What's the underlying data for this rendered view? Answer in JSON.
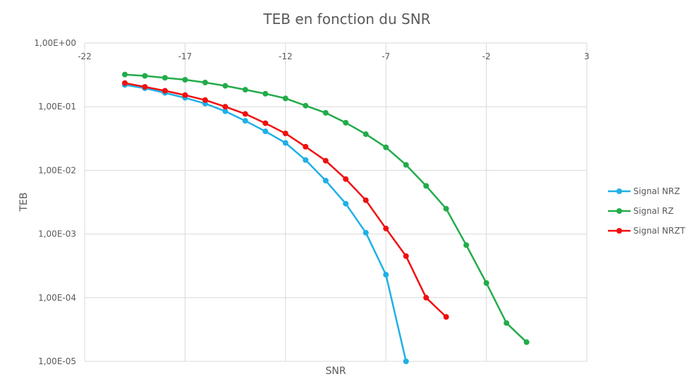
{
  "chart_data": {
    "type": "line",
    "title": "TEB en fonction du SNR",
    "xlabel": "SNR",
    "ylabel": "TEB",
    "xlim": [
      -22,
      3
    ],
    "ylim": [
      1e-05,
      1
    ],
    "y_scale": "log",
    "x_ticks": [
      -22,
      -17,
      -12,
      -7,
      -2,
      3
    ],
    "x_tick_labels": [
      "-22",
      "-17",
      "-12",
      "-7",
      "-2",
      "3"
    ],
    "y_ticks": [
      1,
      0.1,
      0.01,
      0.001,
      0.0001,
      1e-05
    ],
    "y_tick_labels": [
      "1,00E+00",
      "1,00E-01",
      "1,00E-02",
      "1,00E-03",
      "1,00E-04",
      "1,00E-05"
    ],
    "grid": true,
    "legend_position": "right",
    "series": [
      {
        "name": "Signal NRZ",
        "color": "#1fb0e6",
        "x": [
          -20,
          -19,
          -18,
          -17,
          -16,
          -15,
          -14,
          -13,
          -12,
          -11,
          -10,
          -9,
          -8,
          -7,
          -6
        ],
        "y": [
          0.22,
          0.195,
          0.165,
          0.138,
          0.112,
          0.085,
          0.06,
          0.041,
          0.027,
          0.0145,
          0.0069,
          0.003,
          0.00105,
          0.00023,
          1e-05
        ]
      },
      {
        "name": "Signal RZ",
        "color": "#22ac4a",
        "x": [
          -20,
          -19,
          -18,
          -17,
          -16,
          -15,
          -14,
          -13,
          -12,
          -11,
          -10,
          -9,
          -8,
          -7,
          -6,
          -5,
          -4,
          -3,
          -2,
          -1,
          0
        ],
        "y": [
          0.32,
          0.305,
          0.285,
          0.265,
          0.24,
          0.213,
          0.185,
          0.16,
          0.135,
          0.104,
          0.08,
          0.056,
          0.037,
          0.023,
          0.0122,
          0.0057,
          0.0025,
          0.00067,
          0.00017,
          4e-05,
          2e-05
        ]
      },
      {
        "name": "Signal NRZT",
        "color": "#f00f0f",
        "x": [
          -20,
          -19,
          -18,
          -17,
          -16,
          -15,
          -14,
          -13,
          -12,
          -11,
          -10,
          -9,
          -8,
          -7,
          -6,
          -5,
          -4
        ],
        "y": [
          0.235,
          0.205,
          0.178,
          0.152,
          0.127,
          0.1,
          0.077,
          0.055,
          0.038,
          0.0235,
          0.0142,
          0.0073,
          0.0034,
          0.00122,
          0.00045,
          0.0001,
          5e-05
        ]
      }
    ]
  }
}
